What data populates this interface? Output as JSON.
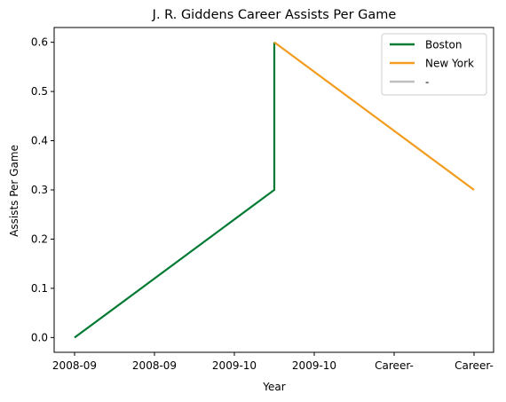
{
  "chart_data": {
    "type": "line",
    "title": "J. R. Giddens Career Assists Per Game",
    "xlabel": "Year",
    "ylabel": "Assists Per Game",
    "categories": [
      "2008-09",
      "2008-09",
      "2009-10",
      "2009-10",
      "Career-",
      "Career-"
    ],
    "ylim": [
      -0.03,
      0.63
    ],
    "yticks": [
      "0.0",
      "0.1",
      "0.2",
      "0.3",
      "0.4",
      "0.5",
      "0.6"
    ],
    "grid": false,
    "legend_position": "top-right",
    "series": [
      {
        "name": "Boston",
        "color": "#007A33",
        "points": [
          [
            0,
            0.0
          ],
          [
            2.5,
            0.3
          ],
          [
            2.5,
            0.6
          ]
        ]
      },
      {
        "name": "New York",
        "color": "#F39C1E",
        "points": [
          [
            2.5,
            0.6
          ],
          [
            5,
            0.3
          ]
        ]
      },
      {
        "name": "-",
        "color": "#BFBFBF",
        "points": []
      }
    ]
  }
}
